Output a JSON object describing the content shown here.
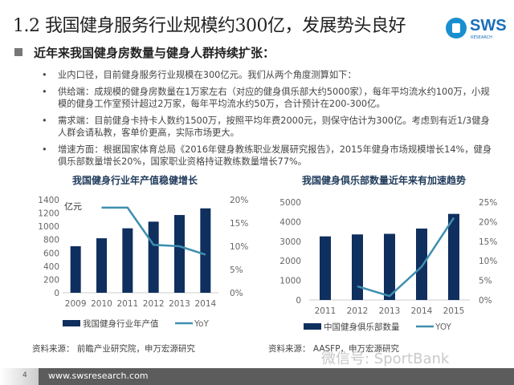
{
  "title": "1.2 我国健身服务行业规模约300亿，发展势头良好",
  "logo": {
    "text": "SWS",
    "sub": "RESEARCH"
  },
  "heading": "近年来我国健身房数量与健身人群持续扩张：",
  "bullets": [
    "业内口径，目前健身服务行业规模在300亿元。我们从两个角度测算如下：",
    "供给端：成规模的健身房数量在1万家左右（对应的健身俱乐部大约5000家），每年平均流水约100万，小规模的健身工作室预计超过2万家，每年平均流水约50万，合计预计在200-300亿。",
    "需求端：目前健身卡持卡人数约1500万，按照平均年费2000元，则保守估计为300亿。考虑到有近1/3健身人群会请私教，客单价更高，实际市场更大。",
    "增速方面：根据国家体育总局《2016年健身教练职业发展研究报告》，2015年健身市场规模增长14%，健身俱乐部数量增长20%，国家职业资格持证教练数量增长77%。"
  ],
  "colors": {
    "bar": "#0f2f5f",
    "line": "#3e8fb0",
    "axis_text": "#666666",
    "footer": "#5c5c5c"
  },
  "chart_data": [
    {
      "type": "bar",
      "title": "我国健身行业年产值稳健增长",
      "unit_label": "亿元",
      "categories": [
        "2009",
        "2010",
        "2011",
        "2012",
        "2013",
        "2014"
      ],
      "series": [
        {
          "name": "我国健身行业年产值",
          "type": "bar",
          "axis": "left",
          "values": [
            700,
            820,
            970,
            1070,
            1170,
            1270
          ]
        },
        {
          "name": "YoY",
          "type": "line",
          "axis": "right",
          "values": [
            null,
            18.3,
            18.3,
            10.3,
            10.0,
            8.2
          ]
        }
      ],
      "ylim": [
        0,
        1400
      ],
      "yticks": [
        "0",
        "200",
        "400",
        "600",
        "800",
        "1000",
        "1200",
        "1400"
      ],
      "y2lim": [
        0,
        20
      ],
      "y2ticks": [
        "0%",
        "5%",
        "10%",
        "15%",
        "20%"
      ],
      "legend": "bottom",
      "source": "资料来源： 前瞻产业研究院，申万宏源研究"
    },
    {
      "type": "bar",
      "title": "我国健身俱乐部数量近年来有加速趋势",
      "categories": [
        "2011",
        "2012",
        "2013",
        "2014",
        "2015"
      ],
      "series": [
        {
          "name": "中国健身俱乐部数量",
          "type": "bar",
          "axis": "left",
          "values": [
            3250,
            3350,
            3380,
            3650,
            4400
          ]
        },
        {
          "name": "YOY",
          "type": "line",
          "axis": "right",
          "values": [
            null,
            3.5,
            1.0,
            8.5,
            21.0
          ]
        }
      ],
      "ylim": [
        0,
        5000
      ],
      "yticks": [
        "0",
        "1000",
        "2000",
        "3000",
        "4000",
        "5000"
      ],
      "y2lim": [
        0,
        25
      ],
      "y2ticks": [
        "0%",
        "5%",
        "10%",
        "15%",
        "20%",
        "25%"
      ],
      "legend": "bottom",
      "source": "资料来源： AASFP，申万宏源研究"
    }
  ],
  "watermark": "微信号: SportBank",
  "footer": {
    "page": "4",
    "url": "www.swsresearch.com"
  }
}
